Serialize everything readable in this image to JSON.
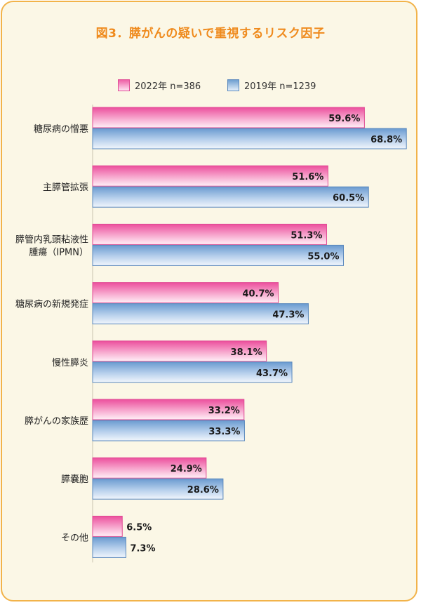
{
  "chart_data": {
    "type": "bar",
    "orientation": "horizontal",
    "title": "図3．膵がんの疑いで重視するリスク因子",
    "categories": [
      [
        "糖尿病の憎悪"
      ],
      [
        "主膵管拡張"
      ],
      [
        "膵管内乳頭粘液性",
        "腫瘍（IPMN）"
      ],
      [
        "糖尿病の新規発症"
      ],
      [
        "慢性膵炎"
      ],
      [
        "膵がんの家族歴"
      ],
      [
        "膵嚢胞"
      ],
      [
        "その他"
      ]
    ],
    "series": [
      {
        "name": "2022年 n=386",
        "values": [
          59.6,
          51.6,
          51.3,
          40.7,
          38.1,
          33.2,
          24.9,
          6.5
        ]
      },
      {
        "name": "2019年 n=1239",
        "values": [
          68.8,
          60.5,
          55.0,
          47.3,
          43.7,
          33.3,
          28.6,
          7.3
        ]
      }
    ],
    "value_format": "percent_1dp",
    "legend": "top-center",
    "grid": false,
    "colors": {
      "2022": "#ee5fa6",
      "2019": "#6f9fd0",
      "title": "#ef8a1c",
      "frame": "#f2b34a",
      "background": "#fbf7e6"
    }
  }
}
